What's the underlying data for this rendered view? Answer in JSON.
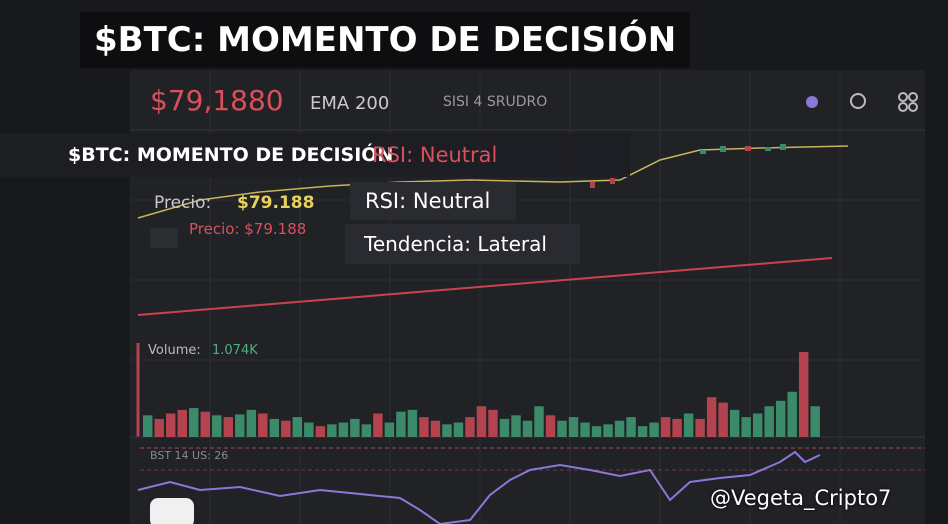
{
  "header": {
    "title": "$BTC: MOMENTO DE DECISIÓN"
  },
  "toolbar": {
    "price": "$79,1880",
    "indicator": "EMA 200",
    "study": "SISI 4 SRUDRO"
  },
  "overlay": {
    "title": "$BTC: MOMENTO DE DECISIÓN",
    "rsi": "RSI: Neutral"
  },
  "labels": {
    "price_label": "Precio:",
    "price_value": "$79.188",
    "price_small": "Precio: $79.188",
    "rsi": "RSI: Neutral",
    "trend": "Tendencia: Lateral"
  },
  "volume": {
    "label": "Volume:",
    "value": "1.074K",
    "values": [
      24,
      20,
      26,
      30,
      32,
      28,
      24,
      22,
      25,
      30,
      26,
      20,
      18,
      22,
      16,
      12,
      14,
      16,
      20,
      14,
      26,
      16,
      28,
      30,
      22,
      18,
      14,
      16,
      22,
      34,
      30,
      20,
      24,
      18,
      34,
      24,
      18,
      22,
      16,
      12,
      14,
      18,
      22,
      12,
      16,
      22,
      20,
      26,
      20,
      44,
      38,
      30,
      22,
      26,
      34,
      40,
      50,
      94,
      34
    ],
    "colors": [
      "#3b8b6b",
      "#b2434f",
      "#b2434f",
      "#b2434f",
      "#3b8b6b",
      "#b2434f",
      "#3b8b6b",
      "#b2434f",
      "#3b8b6b",
      "#3b8b6b",
      "#b2434f",
      "#3b8b6b",
      "#b2434f",
      "#3b8b6b",
      "#3b8b6b",
      "#b2434f",
      "#3b8b6b",
      "#3b8b6b",
      "#3b8b6b",
      "#3b8b6b",
      "#b2434f",
      "#3b8b6b",
      "#3b8b6b",
      "#3b8b6b",
      "#b2434f",
      "#b2434f",
      "#3b8b6b",
      "#3b8b6b",
      "#b2434f",
      "#b2434f",
      "#b2434f",
      "#3b8b6b",
      "#3b8b6b",
      "#3b8b6b",
      "#3b8b6b",
      "#b2434f",
      "#3b8b6b",
      "#3b8b6b",
      "#3b8b6b",
      "#3b8b6b",
      "#3b8b6b",
      "#3b8b6b",
      "#3b8b6b",
      "#3b8b6b",
      "#3b8b6b",
      "#b2434f",
      "#b2434f",
      "#3b8b6b",
      "#b2434f",
      "#b2434f",
      "#b2434f",
      "#3b8b6b",
      "#3b8b6b",
      "#3b8b6b",
      "#3b8b6b",
      "#3b8b6b",
      "#3b8b6b",
      "#b2434f",
      "#3b8b6b"
    ]
  },
  "rsi_panel": {
    "label": "BST 14 US: 26"
  },
  "watermark": "@Vegeta_Cripto7"
}
